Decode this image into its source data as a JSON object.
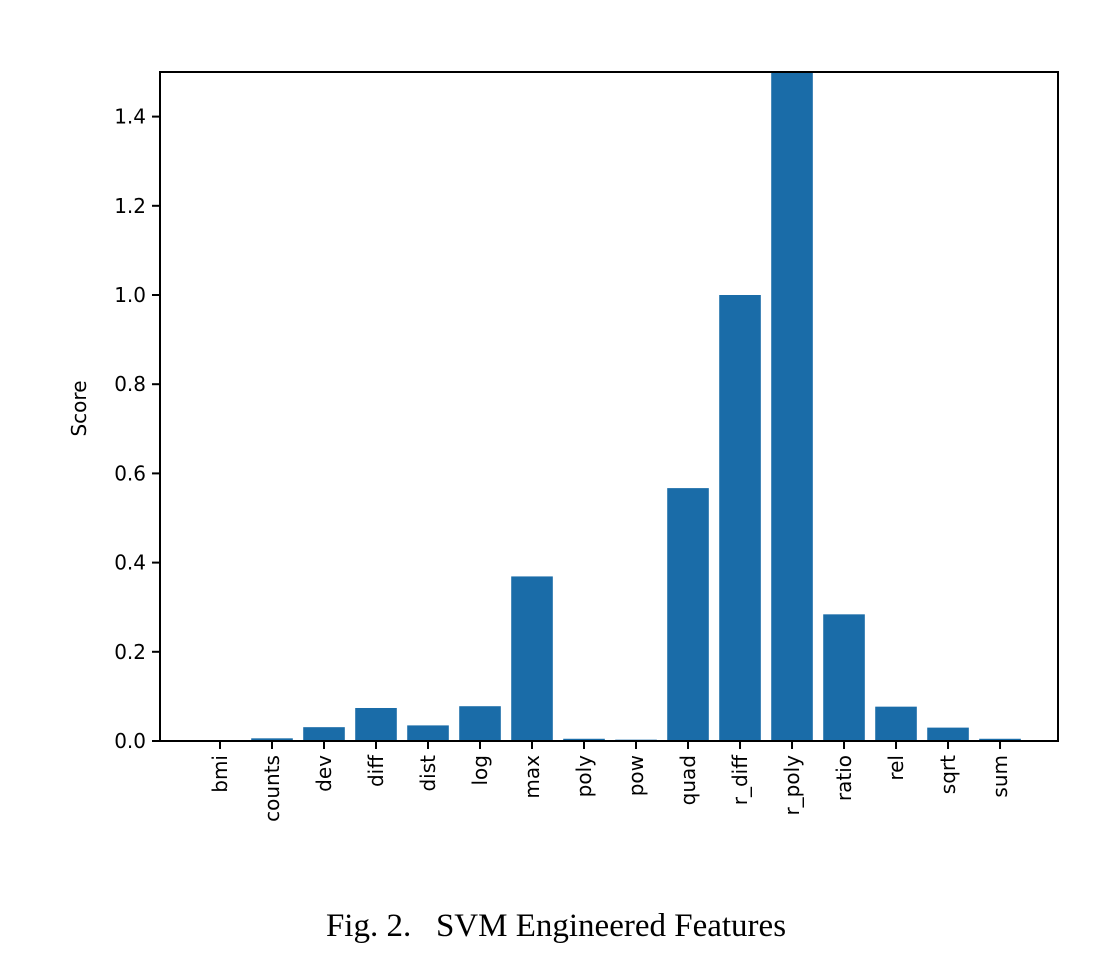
{
  "caption": "Fig. 2.   SVM Engineered Features",
  "chart_data": {
    "type": "bar",
    "title": "",
    "xlabel": "",
    "ylabel": "Score",
    "categories": [
      "bmi",
      "counts",
      "dev",
      "diff",
      "dist",
      "log",
      "max",
      "poly",
      "pow",
      "quad",
      "r_diff",
      "r_poly",
      "ratio",
      "rel",
      "sqrt",
      "sum"
    ],
    "values": [
      0.002,
      0.006,
      0.031,
      0.074,
      0.035,
      0.078,
      0.369,
      0.005,
      0.003,
      0.567,
      1.0,
      1.6,
      0.284,
      0.077,
      0.03,
      0.005
    ],
    "ylim": [
      0,
      1.5
    ],
    "yticks": [
      0.0,
      0.2,
      0.4,
      0.6,
      0.8,
      1.0,
      1.2,
      1.4
    ],
    "ytick_labels": [
      "0.0",
      "0.2",
      "0.4",
      "0.6",
      "0.8",
      "1.0",
      "1.2",
      "1.4"
    ],
    "xtick_rotation": 90,
    "grid": false,
    "legend": "none",
    "bar_color": "#1a6ca8",
    "notes": "r_poly bar exceeds the y-axis limit and is clipped at the top"
  }
}
